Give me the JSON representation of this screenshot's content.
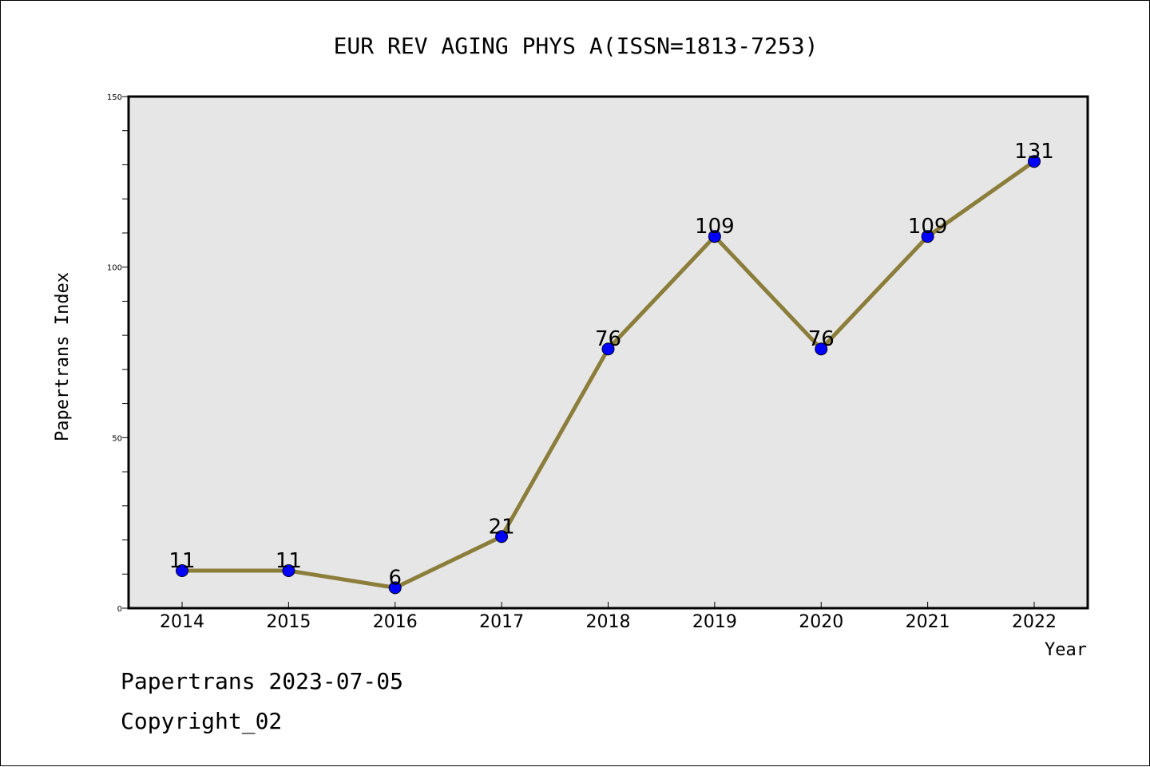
{
  "chart_data": {
    "type": "line",
    "title": "EUR REV AGING PHYS A(ISSN=1813-7253)",
    "xlabel": "Year",
    "ylabel": "Papertrans Index",
    "categories": [
      "2014",
      "2015",
      "2016",
      "2017",
      "2018",
      "2019",
      "2020",
      "2021",
      "2022"
    ],
    "series": [
      {
        "values": [
          11,
          11,
          6,
          21,
          76,
          109,
          76,
          109,
          131
        ],
        "data_labels": [
          "11",
          "11",
          "6",
          "21",
          "76",
          "109",
          "76",
          "109",
          "131"
        ]
      }
    ],
    "ylim": [
      0,
      150
    ],
    "y_tick_labels": [
      "0",
      "50",
      "100",
      "150"
    ],
    "y_minor_step": 10,
    "grid": false,
    "legend": "none",
    "colors": {
      "line": "#8B7D3A",
      "marker": "#0000FF",
      "plot_background": "#E6E6E6"
    }
  },
  "footer": {
    "date_line": "Papertrans 2023-07-05",
    "copyright_line": "Copyright_02"
  }
}
